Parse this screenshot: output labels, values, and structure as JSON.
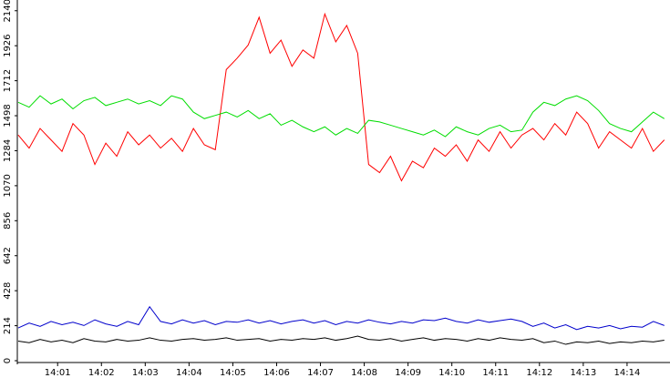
{
  "chart_data": {
    "type": "line",
    "x": [
      0.1,
      0.35,
      0.6,
      0.85,
      1.1,
      1.35,
      1.6,
      1.85,
      2.1,
      2.35,
      2.6,
      2.85,
      3.1,
      3.35,
      3.6,
      3.85,
      4.1,
      4.35,
      4.6,
      4.85,
      5.1,
      5.35,
      5.6,
      5.85,
      6.1,
      6.35,
      6.6,
      6.85,
      7.1,
      7.35,
      7.6,
      7.85,
      8.1,
      8.35,
      8.6,
      8.85,
      9.1,
      9.35,
      9.6,
      9.85,
      10.1,
      10.35,
      10.6,
      10.85,
      11.1,
      11.35,
      11.6,
      11.85,
      12.1,
      12.35,
      12.6,
      12.85,
      13.1,
      13.35,
      13.6,
      13.85,
      14.1,
      14.35,
      14.6,
      14.85
    ],
    "series": [
      {
        "color": "#ff0000",
        "values": [
          1380,
          1300,
          1420,
          1350,
          1280,
          1450,
          1380,
          1200,
          1330,
          1250,
          1400,
          1320,
          1380,
          1300,
          1360,
          1280,
          1420,
          1320,
          1290,
          1780,
          1850,
          1930,
          2100,
          1880,
          1960,
          1800,
          1900,
          1850,
          2120,
          1950,
          2050,
          1880,
          1200,
          1150,
          1250,
          1100,
          1220,
          1180,
          1300,
          1250,
          1320,
          1220,
          1350,
          1280,
          1400,
          1300,
          1380,
          1420,
          1350,
          1450,
          1380,
          1520,
          1450,
          1300,
          1400,
          1350,
          1300,
          1420,
          1280,
          1350
        ]
      },
      {
        "color": "#00dd00",
        "values": [
          1580,
          1550,
          1620,
          1570,
          1600,
          1540,
          1590,
          1610,
          1560,
          1580,
          1600,
          1570,
          1590,
          1560,
          1620,
          1600,
          1520,
          1480,
          1500,
          1520,
          1490,
          1530,
          1480,
          1510,
          1440,
          1470,
          1430,
          1400,
          1430,
          1380,
          1420,
          1390,
          1470,
          1460,
          1440,
          1420,
          1400,
          1380,
          1410,
          1370,
          1430,
          1400,
          1380,
          1420,
          1440,
          1400,
          1410,
          1520,
          1580,
          1560,
          1600,
          1620,
          1590,
          1530,
          1450,
          1420,
          1400,
          1460,
          1520,
          1480
        ]
      },
      {
        "color": "#0000cc",
        "values": [
          200,
          230,
          210,
          240,
          220,
          235,
          215,
          250,
          225,
          210,
          240,
          220,
          330,
          240,
          225,
          250,
          230,
          245,
          220,
          240,
          235,
          250,
          230,
          245,
          225,
          240,
          250,
          230,
          245,
          220,
          240,
          230,
          250,
          235,
          225,
          240,
          230,
          250,
          245,
          260,
          240,
          230,
          250,
          235,
          245,
          255,
          240,
          210,
          230,
          200,
          220,
          190,
          210,
          200,
          215,
          195,
          210,
          205,
          240,
          215
        ]
      },
      {
        "color": "#000000",
        "values": [
          120,
          110,
          130,
          115,
          125,
          110,
          135,
          120,
          115,
          130,
          120,
          125,
          140,
          125,
          120,
          130,
          135,
          125,
          130,
          140,
          125,
          130,
          135,
          120,
          130,
          125,
          135,
          130,
          140,
          125,
          135,
          150,
          130,
          125,
          135,
          120,
          130,
          140,
          125,
          135,
          130,
          120,
          135,
          125,
          140,
          130,
          125,
          135,
          110,
          120,
          100,
          115,
          110,
          120,
          105,
          115,
          110,
          120,
          115,
          125
        ]
      }
    ],
    "xlim": [
      0.08,
      14.98
    ],
    "ylim": [
      0,
      2200
    ],
    "xticks": [
      {
        "value": 1,
        "label": "14:01"
      },
      {
        "value": 2,
        "label": "14:02"
      },
      {
        "value": 3,
        "label": "14:03"
      },
      {
        "value": 4,
        "label": "14:04"
      },
      {
        "value": 5,
        "label": "14:05"
      },
      {
        "value": 6,
        "label": "14:06"
      },
      {
        "value": 7,
        "label": "14:07"
      },
      {
        "value": 8,
        "label": "14:08"
      },
      {
        "value": 9,
        "label": "14:09"
      },
      {
        "value": 10,
        "label": "14:10"
      },
      {
        "value": 11,
        "label": "14:11"
      },
      {
        "value": 12,
        "label": "14:12"
      },
      {
        "value": 13,
        "label": "14:13"
      },
      {
        "value": 14,
        "label": "14:14"
      }
    ],
    "yticks": [
      0,
      214,
      428,
      642,
      856,
      1070,
      1284,
      1498,
      1712,
      1926,
      2140
    ]
  }
}
